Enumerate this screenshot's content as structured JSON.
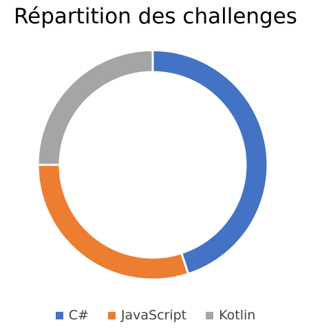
{
  "chart_data": {
    "type": "pie",
    "title": "Répartition des challenges",
    "legend_position": "bottom",
    "categories": [
      "C#",
      "JavaScript",
      "Kotlin"
    ],
    "values": [
      45,
      30,
      25
    ],
    "colors": [
      "#4472C4",
      "#ED7D31",
      "#A5A5A5"
    ]
  }
}
